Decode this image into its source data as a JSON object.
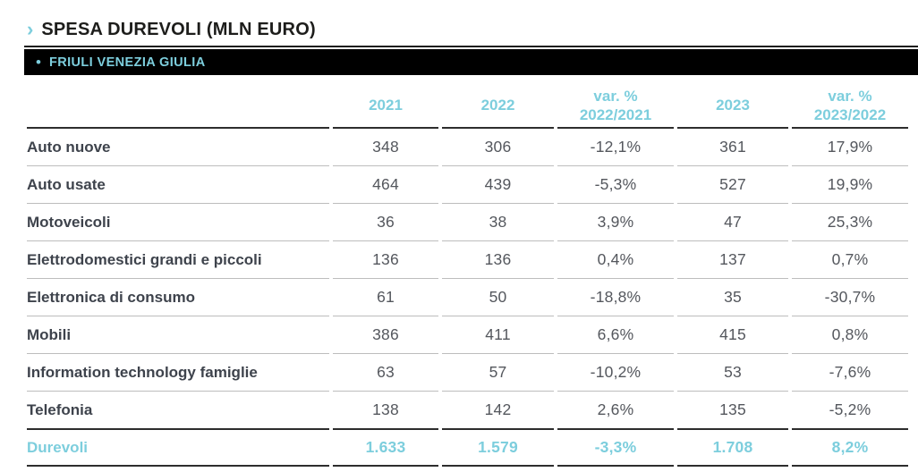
{
  "accent_color": "#7dcedd",
  "header": {
    "chevron": "›",
    "title": "SPESA DUREVOLI (MLN EURO)"
  },
  "region_bar": {
    "bullet": "•",
    "label": "FRIULI VENEZIA GIULIA"
  },
  "table": {
    "columns": [
      "",
      "2021",
      "2022",
      "var. %\n2022/2021",
      "2023",
      "var. %\n2023/2022"
    ],
    "rows": [
      {
        "label": "Auto nuove",
        "values": [
          "348",
          "306",
          "-12,1%",
          "361",
          "17,9%"
        ],
        "total": false
      },
      {
        "label": "Auto usate",
        "values": [
          "464",
          "439",
          "-5,3%",
          "527",
          "19,9%"
        ],
        "total": false
      },
      {
        "label": "Motoveicoli",
        "values": [
          "36",
          "38",
          "3,9%",
          "47",
          "25,3%"
        ],
        "total": false
      },
      {
        "label": "Elettrodomestici grandi e piccoli",
        "values": [
          "136",
          "136",
          "0,4%",
          "137",
          "0,7%"
        ],
        "total": false
      },
      {
        "label": "Elettronica di consumo",
        "values": [
          "61",
          "50",
          "-18,8%",
          "35",
          "-30,7%"
        ],
        "total": false
      },
      {
        "label": "Mobili",
        "values": [
          "386",
          "411",
          "6,6%",
          "415",
          "0,8%"
        ],
        "total": false
      },
      {
        "label": "Information technology famiglie",
        "values": [
          "63",
          "57",
          "-10,2%",
          "53",
          "-7,6%"
        ],
        "total": false
      },
      {
        "label": "Telefonia",
        "values": [
          "138",
          "142",
          "2,6%",
          "135",
          "-5,2%"
        ],
        "total": false
      },
      {
        "label": "Durevoli",
        "values": [
          "1.633",
          "1.579",
          "-3,3%",
          "1.708",
          "8,2%"
        ],
        "total": true
      }
    ]
  },
  "chart_data": {
    "type": "table",
    "title": "SPESA DUREVOLI (MLN EURO)",
    "subtitle": "FRIULI VENEZIA GIULIA",
    "unit": "MLN EURO",
    "categories": [
      "Auto nuove",
      "Auto usate",
      "Motoveicoli",
      "Elettrodomestici grandi e piccoli",
      "Elettronica di consumo",
      "Mobili",
      "Information technology famiglie",
      "Telefonia"
    ],
    "series": [
      {
        "name": "2021",
        "values": [
          348,
          464,
          36,
          136,
          61,
          386,
          63,
          138
        ],
        "total": 1633
      },
      {
        "name": "2022",
        "values": [
          306,
          439,
          38,
          136,
          50,
          411,
          57,
          142
        ],
        "total": 1579
      },
      {
        "name": "var. % 2022/2021",
        "values": [
          "-12,1%",
          "-5,3%",
          "3,9%",
          "0,4%",
          "-18,8%",
          "6,6%",
          "-10,2%",
          "2,6%"
        ],
        "total": "-3,3%"
      },
      {
        "name": "2023",
        "values": [
          361,
          527,
          47,
          137,
          35,
          415,
          53,
          135
        ],
        "total": 1708
      },
      {
        "name": "var. % 2023/2022",
        "values": [
          "17,9%",
          "19,9%",
          "25,3%",
          "0,7%",
          "-30,7%",
          "0,8%",
          "-7,6%",
          "-5,2%"
        ],
        "total": "8,2%"
      }
    ],
    "total_row_label": "Durevoli"
  }
}
